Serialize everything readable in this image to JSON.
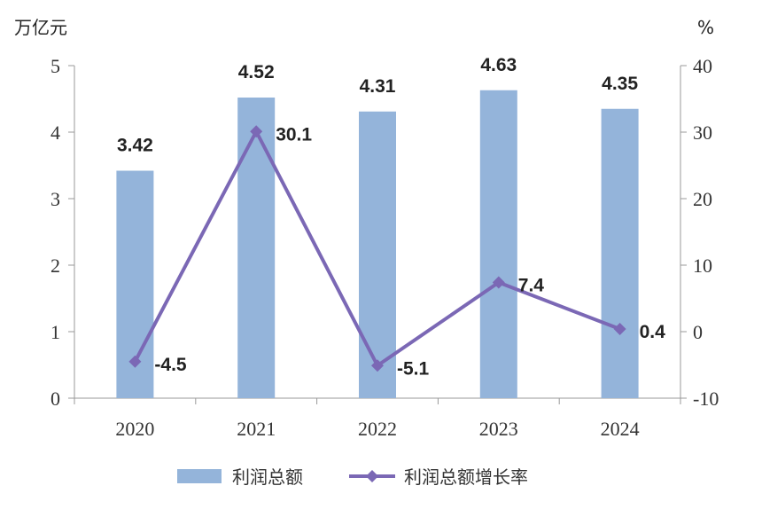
{
  "chart_data": {
    "type": "bar",
    "categories": [
      "2020",
      "2021",
      "2022",
      "2023",
      "2024"
    ],
    "series": [
      {
        "name": "利润总额",
        "type": "bar",
        "axis": "left",
        "color": "#94B4DA",
        "values": [
          3.42,
          4.52,
          4.31,
          4.63,
          4.35
        ],
        "labels": [
          "3.42",
          "4.52",
          "4.31",
          "4.63",
          "4.35"
        ]
      },
      {
        "name": "利润总额增长率",
        "type": "line",
        "axis": "right",
        "color": "#7B68B5",
        "values": [
          -4.5,
          30.1,
          -5.1,
          7.4,
          0.4
        ],
        "labels": [
          "-4.5",
          "30.1",
          "-5.1",
          "7.4",
          "0.4"
        ]
      }
    ],
    "left_axis": {
      "unit": "万亿元",
      "ylim": [
        0,
        5
      ],
      "ticks": [
        "0",
        "1",
        "2",
        "3",
        "4",
        "5"
      ]
    },
    "right_axis": {
      "unit": "%",
      "ylim": [
        -10,
        40
      ],
      "ticks": [
        "-10",
        "0",
        "10",
        "20",
        "30",
        "40"
      ]
    },
    "legend": {
      "position": "bottom"
    },
    "grid": false
  }
}
